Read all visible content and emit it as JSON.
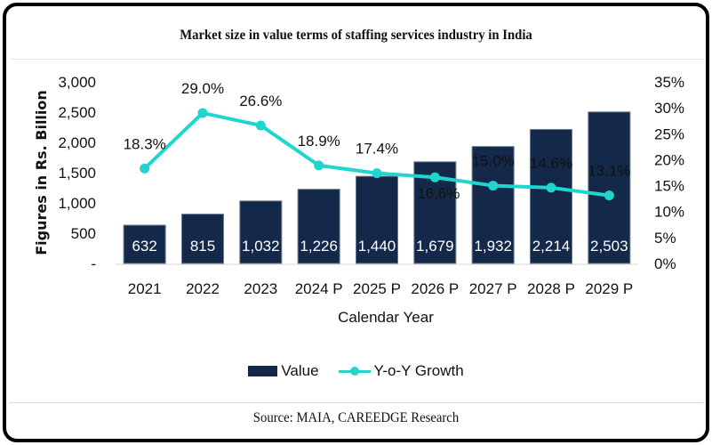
{
  "chart_data": {
    "type": "bar",
    "title": "Market size in value terms of staffing services industry in India",
    "xlabel": "Calendar Year",
    "ylabel": "Figures in Rs. Billion",
    "y2label": "",
    "categories": [
      "2021",
      "2022",
      "2023",
      "2024 P",
      "2025 P",
      "2026 P",
      "2027 P",
      "2028 P",
      "2029 P"
    ],
    "series": [
      {
        "name": "Value",
        "type": "bar",
        "axis": "left",
        "color": "#14294a",
        "values": [
          632,
          815,
          1032,
          1226,
          1440,
          1679,
          1932,
          2214,
          2503
        ],
        "labels": [
          "632",
          "815",
          "1,032",
          "1,226",
          "1,440",
          "1,679",
          "1,932",
          "2,214",
          "2,503"
        ]
      },
      {
        "name": "Y-o-Y Growth",
        "type": "line",
        "axis": "right",
        "color": "#1fd6cf",
        "values": [
          18.3,
          29.0,
          26.6,
          18.9,
          17.4,
          16.6,
          15.0,
          14.6,
          13.1
        ],
        "labels": [
          "18.3%",
          "29.0%",
          "26.6%",
          "18.9%",
          "17.4%",
          "16.6%",
          "15.0%",
          "14.6%",
          "13.1%"
        ]
      }
    ],
    "ylim": [
      0,
      3000
    ],
    "y_ticks": [
      0,
      500,
      1000,
      1500,
      2000,
      2500,
      3000
    ],
    "y_tick_labels": [
      "-",
      "500",
      "1,000",
      "1,500",
      "2,000",
      "2,500",
      "3,000"
    ],
    "y2lim": [
      0,
      35
    ],
    "y2_ticks": [
      0,
      5,
      10,
      15,
      20,
      25,
      30,
      35
    ],
    "y2_tick_labels": [
      "0%",
      "5%",
      "10%",
      "15%",
      "20%",
      "25%",
      "30%",
      "35%"
    ],
    "grid": false,
    "legend": "bottom"
  },
  "legend": {
    "value_label": "Value",
    "growth_label": "Y-o-Y Growth"
  },
  "source": "Source: MAIA, CAREEDGE Research"
}
